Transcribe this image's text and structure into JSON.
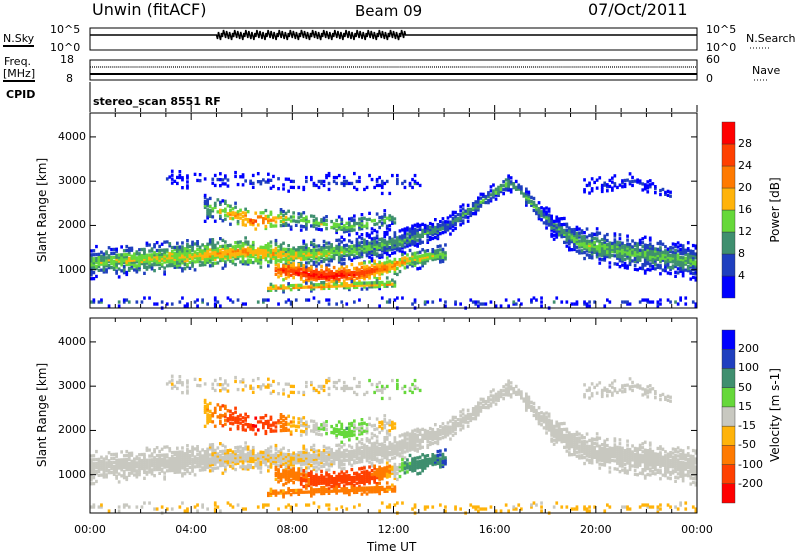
{
  "header": {
    "station": "Unwin (fitACF)",
    "beam": "Beam 09",
    "date": "07/Oct/2011"
  },
  "panels": {
    "nsky": {
      "left_label": "N.Sky",
      "right_label": "N.Search",
      "left_ticks": [
        "10^5",
        "10^0"
      ],
      "right_ticks": [
        "10^5",
        "10^0"
      ]
    },
    "freq": {
      "left_label_1": "Freq.",
      "left_label_2": "[MHz]",
      "right_label": "Nave",
      "left_ticks": [
        "18",
        "8"
      ],
      "right_ticks": [
        "60",
        "0"
      ]
    },
    "cpid": {
      "label": "CPID",
      "value": "stereo_scan 8551 RF"
    }
  },
  "chart_data": [
    {
      "type": "heatmap",
      "name": "power",
      "ylabel": "Slant Range [km]",
      "xlabel": "Time UT",
      "xlim": [
        0,
        24
      ],
      "ylim": [
        135,
        4540
      ],
      "yticks": [
        "1000",
        "2000",
        "3000",
        "4000"
      ],
      "ytick_values": [
        1000,
        2000,
        3000,
        4000
      ],
      "xticks": [
        "00:00",
        "04:00",
        "08:00",
        "12:00",
        "16:00",
        "20:00",
        "00:00"
      ],
      "xtick_values": [
        0,
        4,
        8,
        12,
        16,
        20,
        24
      ],
      "colorbar": {
        "label": "Power [dB]",
        "ticks": [
          "28",
          "24",
          "20",
          "16",
          "12",
          "8",
          "4"
        ],
        "tick_values": [
          28,
          24,
          20,
          16,
          12,
          8,
          4
        ],
        "bins": [
          0,
          4,
          8,
          12,
          16,
          20,
          24,
          28,
          32
        ],
        "colors": [
          "#0000ff",
          "#1f3fbf",
          "#3f8f6f",
          "#66d83a",
          "#ffb30a",
          "#ff7a00",
          "#ff4000",
          "#ff0000"
        ]
      }
    },
    {
      "type": "heatmap",
      "name": "velocity",
      "ylabel": "Slant Range [km]",
      "xlabel": "Time UT",
      "xlim": [
        0,
        24
      ],
      "ylim": [
        135,
        4540
      ],
      "yticks": [
        "1000",
        "2000",
        "3000",
        "4000"
      ],
      "ytick_values": [
        1000,
        2000,
        3000,
        4000
      ],
      "xticks": [
        "00:00",
        "04:00",
        "08:00",
        "12:00",
        "16:00",
        "20:00",
        "00:00"
      ],
      "xtick_values": [
        0,
        4,
        8,
        12,
        16,
        20,
        24
      ],
      "colorbar": {
        "label": "Velocity [m s-1]",
        "ticks": [
          "200",
          "100",
          "50",
          "15",
          "-15",
          "-50",
          "-100",
          "-200"
        ],
        "tick_values": [
          200,
          100,
          50,
          15,
          -15,
          -50,
          -100,
          -200
        ],
        "bins": [
          -300,
          -200,
          -100,
          -50,
          -15,
          15,
          50,
          100,
          200,
          300
        ],
        "colors": [
          "#ff0000",
          "#ff4000",
          "#ff7a00",
          "#ffb30a",
          "#c8c8c0",
          "#66d83a",
          "#3f8f6f",
          "#1f3fbf",
          "#0000ff"
        ]
      }
    }
  ],
  "echo_regions": [
    {
      "pts": [
        [
          0,
          1200,
          230,
          14,
          0
        ],
        [
          4,
          1350,
          230,
          18,
          0
        ],
        [
          6,
          1450,
          200,
          20,
          -10
        ],
        [
          8,
          1350,
          200,
          18,
          -10
        ],
        [
          10,
          1450,
          200,
          14,
          0
        ],
        [
          12,
          1650,
          200,
          12,
          0
        ],
        [
          14,
          2000,
          150,
          10,
          0
        ],
        [
          16.5,
          3000,
          130,
          12,
          0
        ],
        [
          17,
          2800,
          130,
          12,
          0
        ],
        [
          18.3,
          2000,
          200,
          10,
          0
        ],
        [
          19.5,
          1600,
          250,
          14,
          0
        ],
        [
          24,
          1200,
          280,
          12,
          0
        ]
      ],
      "density": 0.9
    },
    {
      "pts": [
        [
          7.3,
          1050,
          130,
          26,
          -60
        ],
        [
          9,
          900,
          150,
          30,
          -120
        ],
        [
          10.5,
          950,
          150,
          28,
          -150
        ],
        [
          11.5,
          1050,
          150,
          24,
          -80
        ],
        [
          12.5,
          1250,
          150,
          18,
          60
        ],
        [
          14,
          1400,
          130,
          14,
          100
        ]
      ],
      "density": 0.95
    },
    {
      "pts": [
        [
          7,
          620,
          60,
          20,
          -60
        ],
        [
          10,
          680,
          60,
          20,
          -70
        ],
        [
          12,
          720,
          60,
          18,
          -60
        ]
      ],
      "density": 0.85
    },
    {
      "pts": [
        [
          4.5,
          2450,
          200,
          12,
          -30
        ],
        [
          6.5,
          2150,
          150,
          26,
          -200
        ],
        [
          8,
          2200,
          150,
          14,
          -30
        ],
        [
          10,
          2000,
          150,
          14,
          40
        ],
        [
          12,
          2200,
          150,
          12,
          -30
        ]
      ],
      "density": 0.55
    },
    {
      "pts": [
        [
          3,
          3100,
          120,
          6,
          0
        ],
        [
          8,
          3000,
          150,
          6,
          -20
        ],
        [
          13,
          3000,
          150,
          6,
          20
        ]
      ],
      "density": 0.25
    },
    {
      "pts": [
        [
          19.5,
          2900,
          120,
          6,
          0
        ],
        [
          21.5,
          3050,
          120,
          6,
          0
        ],
        [
          23,
          2700,
          100,
          6,
          0
        ]
      ],
      "density": 0.45
    },
    {
      "pts": [
        [
          0,
          300,
          80,
          8,
          0
        ],
        [
          8,
          300,
          80,
          8,
          -30
        ],
        [
          16,
          300,
          80,
          6,
          -30
        ],
        [
          24,
          300,
          80,
          6,
          -20
        ]
      ],
      "density": 0.18
    }
  ]
}
